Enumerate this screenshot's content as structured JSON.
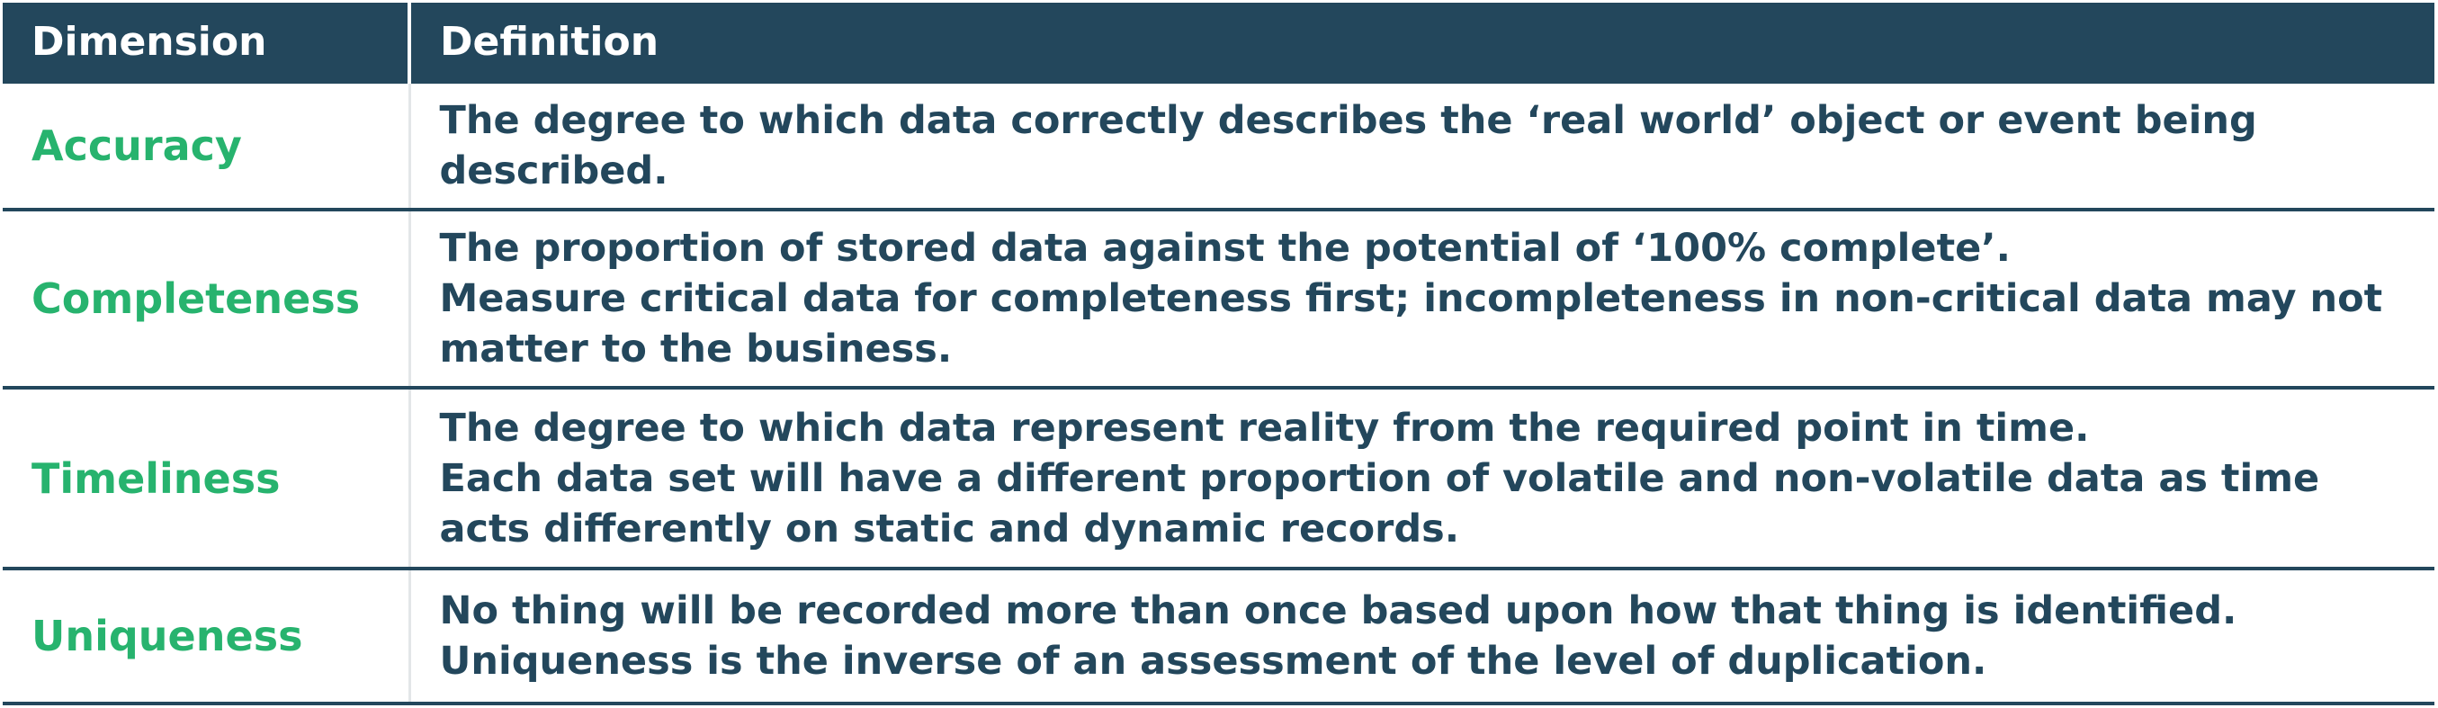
{
  "table": {
    "headers": {
      "dimension": "Dimension",
      "definition": "Definition"
    },
    "rows": [
      {
        "dimension": "Accuracy",
        "definition": [
          "The degree to which data correctly describes the ‘real world’ object or event being described."
        ]
      },
      {
        "dimension": "Completeness",
        "definition": [
          "The proportion of stored data against the potential of ‘100% complete’.",
          "Measure critical data for completeness first; incompleteness in non-critical data may not matter to the business."
        ]
      },
      {
        "dimension": "Timeliness",
        "definition": [
          "The degree to which data represent reality from the required point in time.",
          "Each data set will have a different proportion of volatile and non-volatile data as time acts differently on static and dynamic records."
        ]
      },
      {
        "dimension": "Uniqueness",
        "definition": [
          "No thing will be recorded more than once based upon how that thing is identified.",
          "Uniqueness is the inverse of an assessment of the level of duplication."
        ]
      }
    ]
  },
  "colors": {
    "header_bg": "#23475c",
    "dimension_text": "#27b36e",
    "definition_text": "#23475c"
  }
}
